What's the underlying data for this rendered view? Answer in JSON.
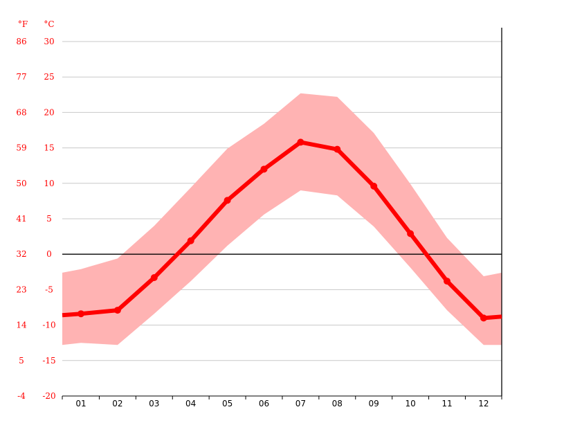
{
  "chart_data": {
    "type": "line",
    "units": {
      "fahrenheit": "°F",
      "celsius": "°C"
    },
    "categories": [
      "01",
      "02",
      "03",
      "04",
      "05",
      "06",
      "07",
      "08",
      "09",
      "10",
      "11",
      "12"
    ],
    "y_ticks_c": [
      30,
      25,
      20,
      15,
      10,
      5,
      0,
      -5,
      -10,
      -15,
      -20
    ],
    "y_ticks_f": [
      86,
      77,
      68,
      59,
      50,
      41,
      32,
      23,
      14,
      5,
      -4
    ],
    "ylim": [
      -20,
      30
    ],
    "grid": true,
    "series": [
      {
        "values": [
          -8.4,
          -7.9,
          -3.3,
          1.9,
          7.6,
          12.0,
          15.8,
          14.8,
          9.6,
          2.9,
          -3.8,
          -9.0
        ]
      }
    ],
    "band": {
      "upper": [
        -2.1,
        -0.6,
        4.0,
        9.4,
        14.9,
        18.4,
        22.7,
        22.2,
        17.1,
        9.9,
        2.3,
        -3.1
      ],
      "lower": [
        -12.5,
        -12.8,
        -8.4,
        -3.8,
        1.2,
        5.6,
        9.0,
        8.3,
        3.9,
        -1.9,
        -7.9,
        -12.8
      ],
      "edge_start_upper": -2.6,
      "edge_start_lower": -12.8,
      "edge_end_upper": -2.6,
      "edge_end_lower": -12.8
    },
    "line_edge_start": -8.6,
    "line_edge_end": -8.8,
    "colors": {
      "line": "#ff0000",
      "band": "#ffb3b3",
      "grid": "#c8c8c8",
      "zero_line": "#000000",
      "axis": "#000000",
      "tick_text": "#ff0000",
      "x_text": "#000000"
    }
  }
}
